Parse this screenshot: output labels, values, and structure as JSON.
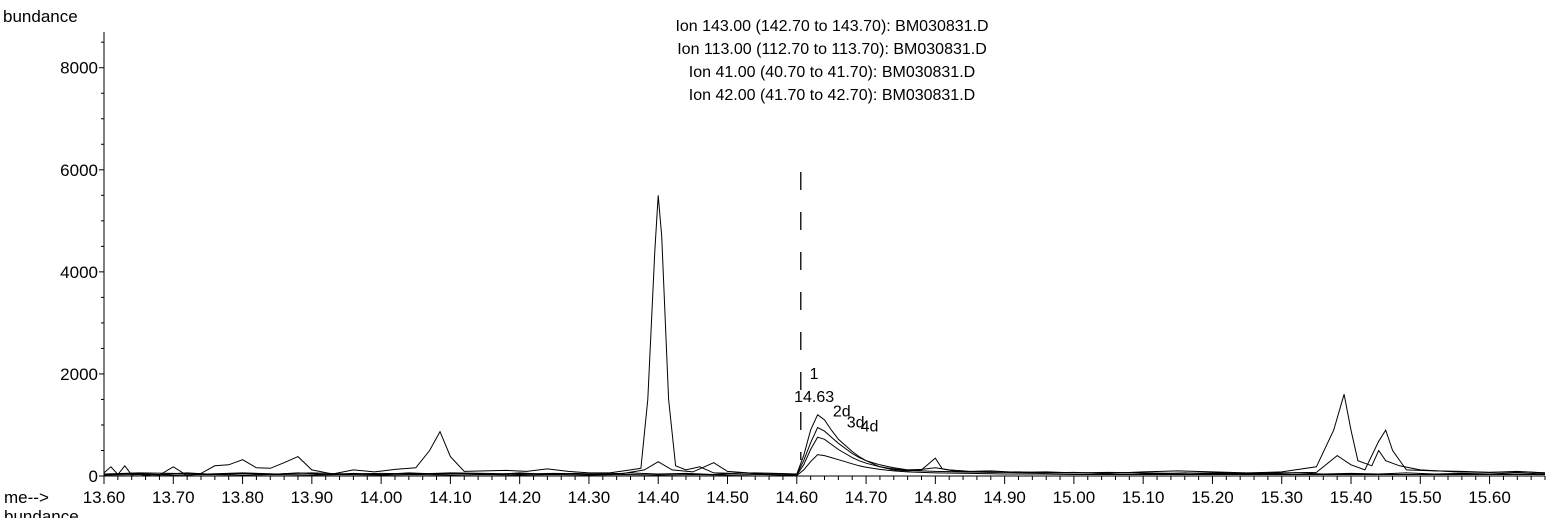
{
  "chart_data": {
    "type": "line",
    "ylabel": "bundance",
    "xlabel_prefix": "me-->",
    "bottom_cut_label": "bundance",
    "xlim": [
      13.6,
      15.68
    ],
    "ylim": [
      0,
      8700
    ],
    "xticks": [
      13.6,
      13.7,
      13.8,
      13.9,
      14.0,
      14.1,
      14.2,
      14.3,
      14.4,
      14.5,
      14.6,
      14.7,
      14.8,
      14.9,
      15.0,
      15.1,
      15.2,
      15.3,
      15.4,
      15.5,
      15.6
    ],
    "xtick_labels": [
      "13.60",
      "13.70",
      "13.80",
      "13.90",
      "14.00",
      "14.10",
      "14.20",
      "14.30",
      "14.40",
      "14.50",
      "14.60",
      "14.70",
      "14.80",
      "14.90",
      "15.00",
      "15.10",
      "15.20",
      "15.30",
      "15.40",
      "15.50",
      "15.60"
    ],
    "yticks": [
      0,
      2000,
      4000,
      6000,
      8000
    ],
    "ytick_labels": [
      "0",
      "2000",
      "4000",
      "6000",
      "8000"
    ],
    "legend": [
      "Ion 143.00 (142.70 to 143.70): BM030831.D",
      "Ion 113.00 (112.70 to 113.70): BM030831.D",
      "Ion  41.00 (40.70 to 41.70): BM030831.D",
      "Ion  42.00 (41.70 to 42.70): BM030831.D"
    ],
    "marker_x": 14.6,
    "annotations": [
      {
        "text": "1",
        "x": 14.625,
        "y": 1900
      },
      {
        "text": "14.63",
        "x": 14.625,
        "y": 1450
      },
      {
        "text": "2d",
        "x": 14.665,
        "y": 1170
      },
      {
        "text": "3d",
        "x": 14.685,
        "y": 950
      },
      {
        "text": "4d",
        "x": 14.705,
        "y": 870
      }
    ],
    "series": [
      {
        "values": [
          [
            13.6,
            60
          ],
          [
            13.61,
            180
          ],
          [
            13.62,
            30
          ],
          [
            13.63,
            200
          ],
          [
            13.64,
            20
          ],
          [
            13.65,
            40
          ],
          [
            13.66,
            10
          ],
          [
            13.67,
            30
          ],
          [
            13.68,
            20
          ],
          [
            13.7,
            180
          ],
          [
            13.72,
            10
          ],
          [
            13.74,
            50
          ],
          [
            13.76,
            200
          ],
          [
            13.78,
            220
          ],
          [
            13.8,
            320
          ],
          [
            13.82,
            160
          ],
          [
            13.84,
            150
          ],
          [
            13.86,
            260
          ],
          [
            13.88,
            380
          ],
          [
            13.9,
            120
          ],
          [
            13.93,
            40
          ],
          [
            13.96,
            120
          ],
          [
            13.99,
            80
          ],
          [
            14.02,
            130
          ],
          [
            14.05,
            160
          ],
          [
            14.07,
            500
          ],
          [
            14.085,
            870
          ],
          [
            14.1,
            380
          ],
          [
            14.12,
            90
          ],
          [
            14.15,
            100
          ],
          [
            14.18,
            110
          ],
          [
            14.21,
            90
          ],
          [
            14.24,
            140
          ],
          [
            14.27,
            90
          ],
          [
            14.3,
            60
          ],
          [
            14.33,
            60
          ],
          [
            14.36,
            120
          ],
          [
            14.375,
            150
          ],
          [
            14.385,
            1500
          ],
          [
            14.395,
            4400
          ],
          [
            14.4,
            5500
          ],
          [
            14.405,
            4700
          ],
          [
            14.415,
            1500
          ],
          [
            14.425,
            200
          ],
          [
            14.44,
            120
          ],
          [
            14.46,
            180
          ],
          [
            14.48,
            60
          ],
          [
            14.51,
            50
          ],
          [
            14.54,
            60
          ],
          [
            14.57,
            50
          ],
          [
            14.6,
            40
          ],
          [
            14.61,
            400
          ],
          [
            14.62,
            900
          ],
          [
            14.63,
            1200
          ],
          [
            14.64,
            1100
          ],
          [
            14.65,
            900
          ],
          [
            14.66,
            720
          ],
          [
            14.67,
            600
          ],
          [
            14.68,
            480
          ],
          [
            14.69,
            380
          ],
          [
            14.7,
            300
          ],
          [
            14.72,
            180
          ],
          [
            14.74,
            120
          ],
          [
            14.76,
            100
          ],
          [
            14.78,
            120
          ],
          [
            14.8,
            350
          ],
          [
            14.81,
            140
          ],
          [
            14.83,
            90
          ],
          [
            14.86,
            80
          ],
          [
            14.9,
            70
          ],
          [
            14.95,
            60
          ],
          [
            15.0,
            60
          ],
          [
            15.05,
            50
          ],
          [
            15.1,
            80
          ],
          [
            15.15,
            100
          ],
          [
            15.2,
            80
          ],
          [
            15.25,
            60
          ],
          [
            15.3,
            80
          ],
          [
            15.35,
            180
          ],
          [
            15.375,
            900
          ],
          [
            15.39,
            1600
          ],
          [
            15.4,
            900
          ],
          [
            15.41,
            300
          ],
          [
            15.43,
            200
          ],
          [
            15.44,
            500
          ],
          [
            15.45,
            300
          ],
          [
            15.47,
            200
          ],
          [
            15.5,
            120
          ],
          [
            15.55,
            80
          ],
          [
            15.6,
            70
          ],
          [
            15.65,
            80
          ],
          [
            15.68,
            60
          ]
        ]
      },
      {
        "values": [
          [
            13.6,
            40
          ],
          [
            13.65,
            60
          ],
          [
            13.7,
            50
          ],
          [
            13.75,
            40
          ],
          [
            13.8,
            60
          ],
          [
            13.85,
            40
          ],
          [
            13.9,
            60
          ],
          [
            13.95,
            40
          ],
          [
            14.0,
            50
          ],
          [
            14.05,
            40
          ],
          [
            14.1,
            60
          ],
          [
            14.15,
            50
          ],
          [
            14.2,
            40
          ],
          [
            14.25,
            50
          ],
          [
            14.3,
            40
          ],
          [
            14.35,
            50
          ],
          [
            14.38,
            120
          ],
          [
            14.4,
            280
          ],
          [
            14.42,
            120
          ],
          [
            14.45,
            80
          ],
          [
            14.48,
            260
          ],
          [
            14.5,
            90
          ],
          [
            14.53,
            60
          ],
          [
            14.56,
            50
          ],
          [
            14.59,
            40
          ],
          [
            14.6,
            30
          ],
          [
            14.61,
            300
          ],
          [
            14.62,
            650
          ],
          [
            14.63,
            950
          ],
          [
            14.64,
            880
          ],
          [
            14.65,
            760
          ],
          [
            14.66,
            640
          ],
          [
            14.67,
            540
          ],
          [
            14.68,
            440
          ],
          [
            14.69,
            360
          ],
          [
            14.7,
            300
          ],
          [
            14.72,
            220
          ],
          [
            14.74,
            160
          ],
          [
            14.76,
            120
          ],
          [
            14.78,
            130
          ],
          [
            14.8,
            160
          ],
          [
            14.82,
            120
          ],
          [
            14.85,
            90
          ],
          [
            14.88,
            100
          ],
          [
            14.92,
            70
          ],
          [
            14.96,
            80
          ],
          [
            15.0,
            60
          ],
          [
            15.05,
            70
          ],
          [
            15.1,
            60
          ],
          [
            15.15,
            50
          ],
          [
            15.2,
            60
          ],
          [
            15.25,
            50
          ],
          [
            15.3,
            60
          ],
          [
            15.35,
            70
          ],
          [
            15.38,
            400
          ],
          [
            15.4,
            220
          ],
          [
            15.42,
            120
          ],
          [
            15.44,
            680
          ],
          [
            15.45,
            900
          ],
          [
            15.46,
            500
          ],
          [
            15.48,
            120
          ],
          [
            15.52,
            100
          ],
          [
            15.56,
            90
          ],
          [
            15.6,
            70
          ],
          [
            15.64,
            90
          ],
          [
            15.68,
            60
          ]
        ]
      },
      {
        "values": [
          [
            13.6,
            30
          ],
          [
            13.64,
            50
          ],
          [
            13.68,
            30
          ],
          [
            13.72,
            60
          ],
          [
            13.76,
            30
          ],
          [
            13.8,
            50
          ],
          [
            13.84,
            30
          ],
          [
            13.88,
            60
          ],
          [
            13.92,
            30
          ],
          [
            13.96,
            50
          ],
          [
            14.0,
            30
          ],
          [
            14.04,
            60
          ],
          [
            14.08,
            40
          ],
          [
            14.12,
            50
          ],
          [
            14.16,
            30
          ],
          [
            14.2,
            60
          ],
          [
            14.24,
            30
          ],
          [
            14.28,
            50
          ],
          [
            14.32,
            30
          ],
          [
            14.36,
            60
          ],
          [
            14.4,
            40
          ],
          [
            14.44,
            50
          ],
          [
            14.48,
            30
          ],
          [
            14.52,
            60
          ],
          [
            14.56,
            30
          ],
          [
            14.6,
            20
          ],
          [
            14.61,
            220
          ],
          [
            14.62,
            520
          ],
          [
            14.63,
            760
          ],
          [
            14.64,
            720
          ],
          [
            14.65,
            620
          ],
          [
            14.66,
            520
          ],
          [
            14.67,
            440
          ],
          [
            14.68,
            360
          ],
          [
            14.69,
            300
          ],
          [
            14.7,
            250
          ],
          [
            14.72,
            180
          ],
          [
            14.74,
            140
          ],
          [
            14.76,
            110
          ],
          [
            14.78,
            100
          ],
          [
            14.8,
            90
          ],
          [
            14.84,
            80
          ],
          [
            14.88,
            70
          ],
          [
            14.92,
            80
          ],
          [
            14.96,
            60
          ],
          [
            15.0,
            70
          ],
          [
            15.04,
            50
          ],
          [
            15.08,
            60
          ],
          [
            15.12,
            40
          ],
          [
            15.16,
            60
          ],
          [
            15.2,
            40
          ],
          [
            15.24,
            50
          ],
          [
            15.28,
            40
          ],
          [
            15.32,
            60
          ],
          [
            15.36,
            40
          ],
          [
            15.4,
            50
          ],
          [
            15.44,
            40
          ],
          [
            15.48,
            60
          ],
          [
            15.52,
            40
          ],
          [
            15.56,
            50
          ],
          [
            15.6,
            40
          ],
          [
            15.64,
            60
          ],
          [
            15.68,
            40
          ]
        ]
      },
      {
        "values": [
          [
            13.6,
            20
          ],
          [
            13.65,
            30
          ],
          [
            13.7,
            20
          ],
          [
            13.75,
            30
          ],
          [
            13.8,
            20
          ],
          [
            13.85,
            30
          ],
          [
            13.9,
            20
          ],
          [
            13.95,
            30
          ],
          [
            14.0,
            20
          ],
          [
            14.05,
            30
          ],
          [
            14.1,
            20
          ],
          [
            14.15,
            30
          ],
          [
            14.2,
            20
          ],
          [
            14.25,
            30
          ],
          [
            14.3,
            20
          ],
          [
            14.35,
            30
          ],
          [
            14.4,
            20
          ],
          [
            14.45,
            30
          ],
          [
            14.5,
            20
          ],
          [
            14.55,
            30
          ],
          [
            14.6,
            10
          ],
          [
            14.61,
            120
          ],
          [
            14.62,
            280
          ],
          [
            14.63,
            420
          ],
          [
            14.64,
            400
          ],
          [
            14.65,
            360
          ],
          [
            14.66,
            320
          ],
          [
            14.67,
            280
          ],
          [
            14.68,
            240
          ],
          [
            14.69,
            200
          ],
          [
            14.7,
            170
          ],
          [
            14.72,
            130
          ],
          [
            14.74,
            100
          ],
          [
            14.76,
            80
          ],
          [
            14.8,
            60
          ],
          [
            14.85,
            50
          ],
          [
            14.9,
            40
          ],
          [
            14.95,
            40
          ],
          [
            15.0,
            30
          ],
          [
            15.1,
            30
          ],
          [
            15.2,
            30
          ],
          [
            15.3,
            30
          ],
          [
            15.4,
            30
          ],
          [
            15.5,
            30
          ],
          [
            15.6,
            30
          ],
          [
            15.68,
            30
          ]
        ]
      }
    ]
  }
}
